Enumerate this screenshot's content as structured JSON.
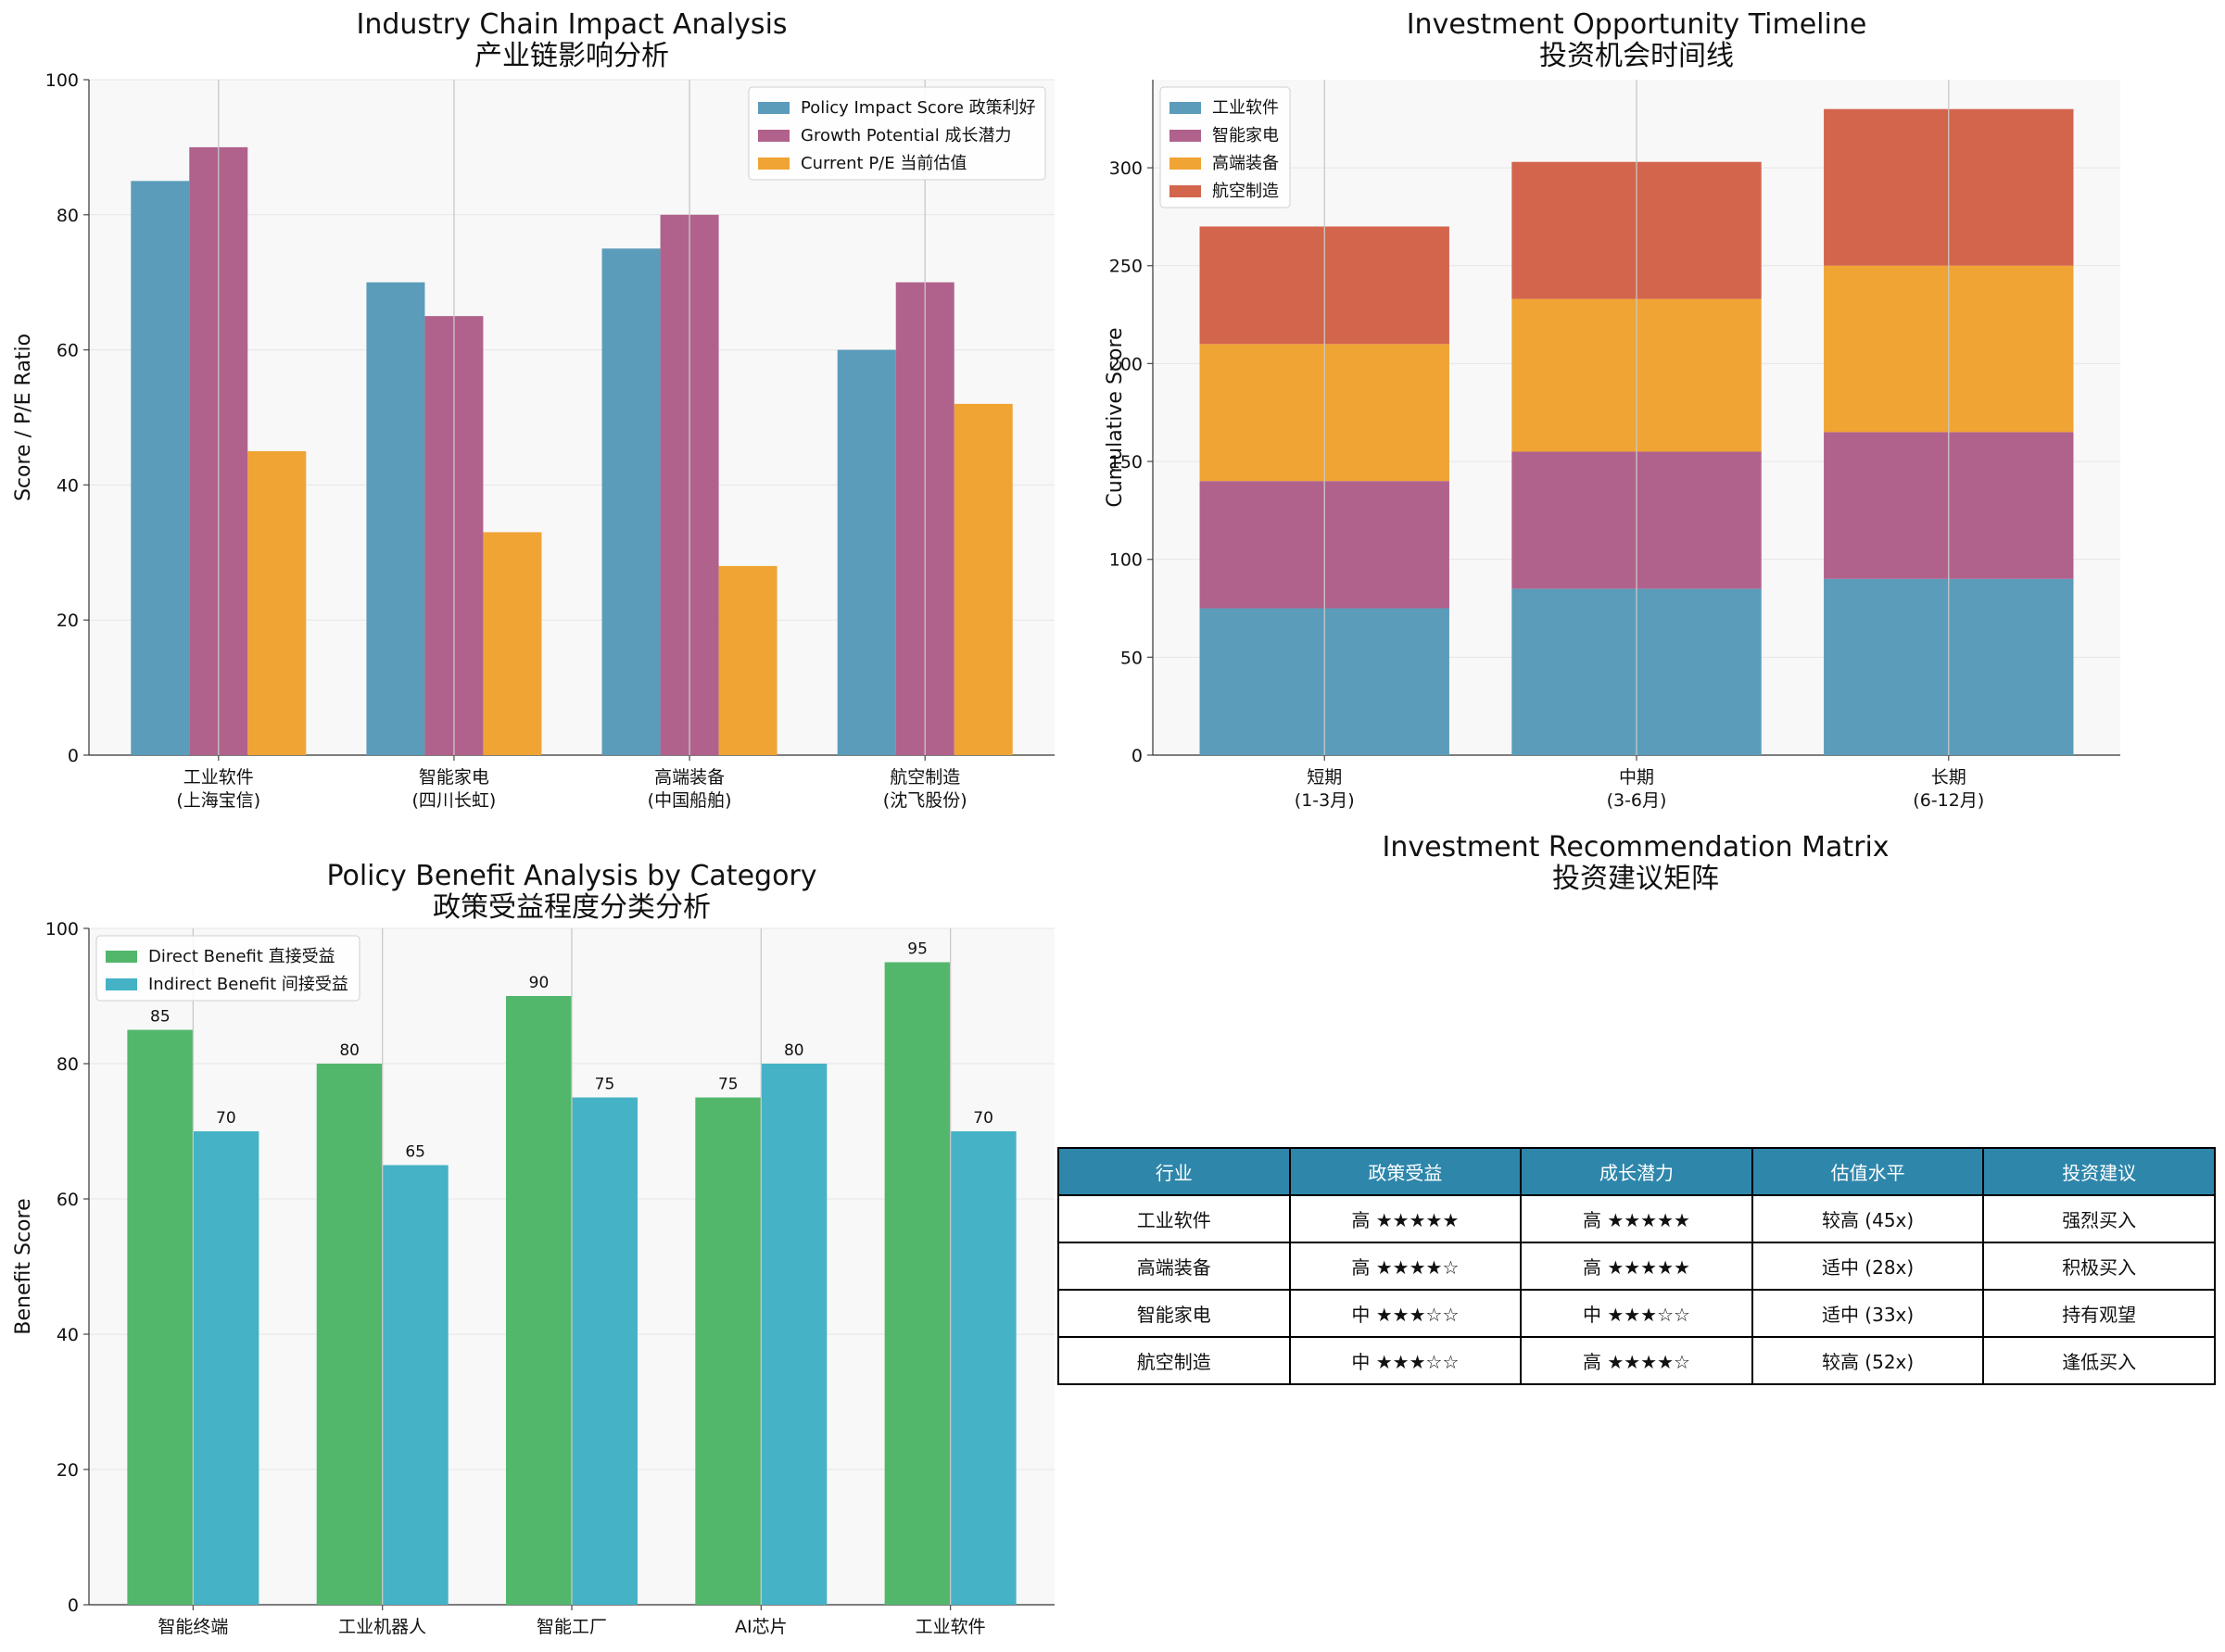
{
  "colors": {
    "blue": "#5a9cba",
    "purple": "#b0628c",
    "orange": "#f0a433",
    "red": "#d3654c",
    "green": "#52b76b",
    "teal": "#45b2c6",
    "plot_bg": "#f8f8f8",
    "header_bg": "#2e86ab"
  },
  "chart_data": [
    {
      "id": "industry-chain",
      "type": "bar",
      "title": "Industry Chain Impact Analysis",
      "title_cn": "产业链影响分析",
      "xlabel": "",
      "ylabel": "Score / P/E Ratio",
      "ylim": [
        0,
        100
      ],
      "yticks": [
        0,
        20,
        40,
        60,
        80,
        100
      ],
      "categories": [
        "工业软件\n(上海宝信)",
        "智能家电\n(四川长虹)",
        "高端装备\n(中国船舶)",
        "航空制造\n(沈飞股份)"
      ],
      "series": [
        {
          "name": "Policy Impact Score 政策利好",
          "color": "#5a9cba",
          "values": [
            85,
            70,
            75,
            60
          ]
        },
        {
          "name": "Growth Potential 成长潜力",
          "color": "#b0628c",
          "values": [
            90,
            65,
            80,
            70
          ]
        },
        {
          "name": "Current P/E  当前估值",
          "color": "#f0a433",
          "values": [
            45,
            33,
            28,
            52
          ]
        }
      ],
      "legend": "top-right"
    },
    {
      "id": "timeline",
      "type": "bar",
      "stacked": true,
      "title": "Investment Opportunity Timeline",
      "title_cn": "投资机会时间线",
      "xlabel": "",
      "ylabel": "Cumulative Score",
      "ylim": [
        0,
        345
      ],
      "yticks": [
        0,
        50,
        100,
        150,
        200,
        250,
        300
      ],
      "categories": [
        "短期\n(1-3月)",
        "中期\n(3-6月)",
        "长期\n(6-12月)"
      ],
      "series": [
        {
          "name": "工业软件",
          "color": "#5a9cba",
          "values": [
            75,
            85,
            90
          ]
        },
        {
          "name": "智能家电",
          "color": "#b0628c",
          "values": [
            65,
            70,
            75
          ]
        },
        {
          "name": "高端装备",
          "color": "#f0a433",
          "values": [
            70,
            78,
            85
          ]
        },
        {
          "name": "航空制造",
          "color": "#d3654c",
          "values": [
            60,
            70,
            80
          ]
        }
      ],
      "legend": "top-left"
    },
    {
      "id": "policy-benefit",
      "type": "bar",
      "title": "Policy Benefit Analysis by Category",
      "title_cn": "政策受益程度分类分析",
      "xlabel": "",
      "ylabel": "Benefit Score",
      "ylim": [
        0,
        100
      ],
      "yticks": [
        0,
        20,
        40,
        60,
        80,
        100
      ],
      "categories": [
        "智能终端",
        "工业机器人",
        "智能工厂",
        "AI芯片",
        "工业软件"
      ],
      "series": [
        {
          "name": "Direct Benefit 直接受益",
          "color": "#52b76b",
          "values": [
            85,
            80,
            90,
            75,
            95
          ]
        },
        {
          "name": "Indirect Benefit 间接受益",
          "color": "#45b2c6",
          "values": [
            70,
            65,
            75,
            80,
            70
          ]
        }
      ],
      "data_labels": true,
      "legend": "top-left"
    },
    {
      "id": "recommendation-matrix",
      "type": "table",
      "title": "Investment Recommendation Matrix",
      "title_cn": "投资建议矩阵",
      "columns": [
        "行业",
        "政策受益",
        "成长潜力",
        "估值水平",
        "投资建议"
      ],
      "rows": [
        [
          "工业软件",
          "高 ★★★★★",
          "高 ★★★★★",
          "较高 (45x)",
          "强烈买入"
        ],
        [
          "高端装备",
          "高 ★★★★☆",
          "高 ★★★★★",
          "适中 (28x)",
          "积极买入"
        ],
        [
          "智能家电",
          "中 ★★★☆☆",
          "中 ★★★☆☆",
          "适中 (33x)",
          "持有观望"
        ],
        [
          "航空制造",
          "中 ★★★☆☆",
          "高 ★★★★☆",
          "较高 (52x)",
          "逢低买入"
        ]
      ]
    }
  ]
}
